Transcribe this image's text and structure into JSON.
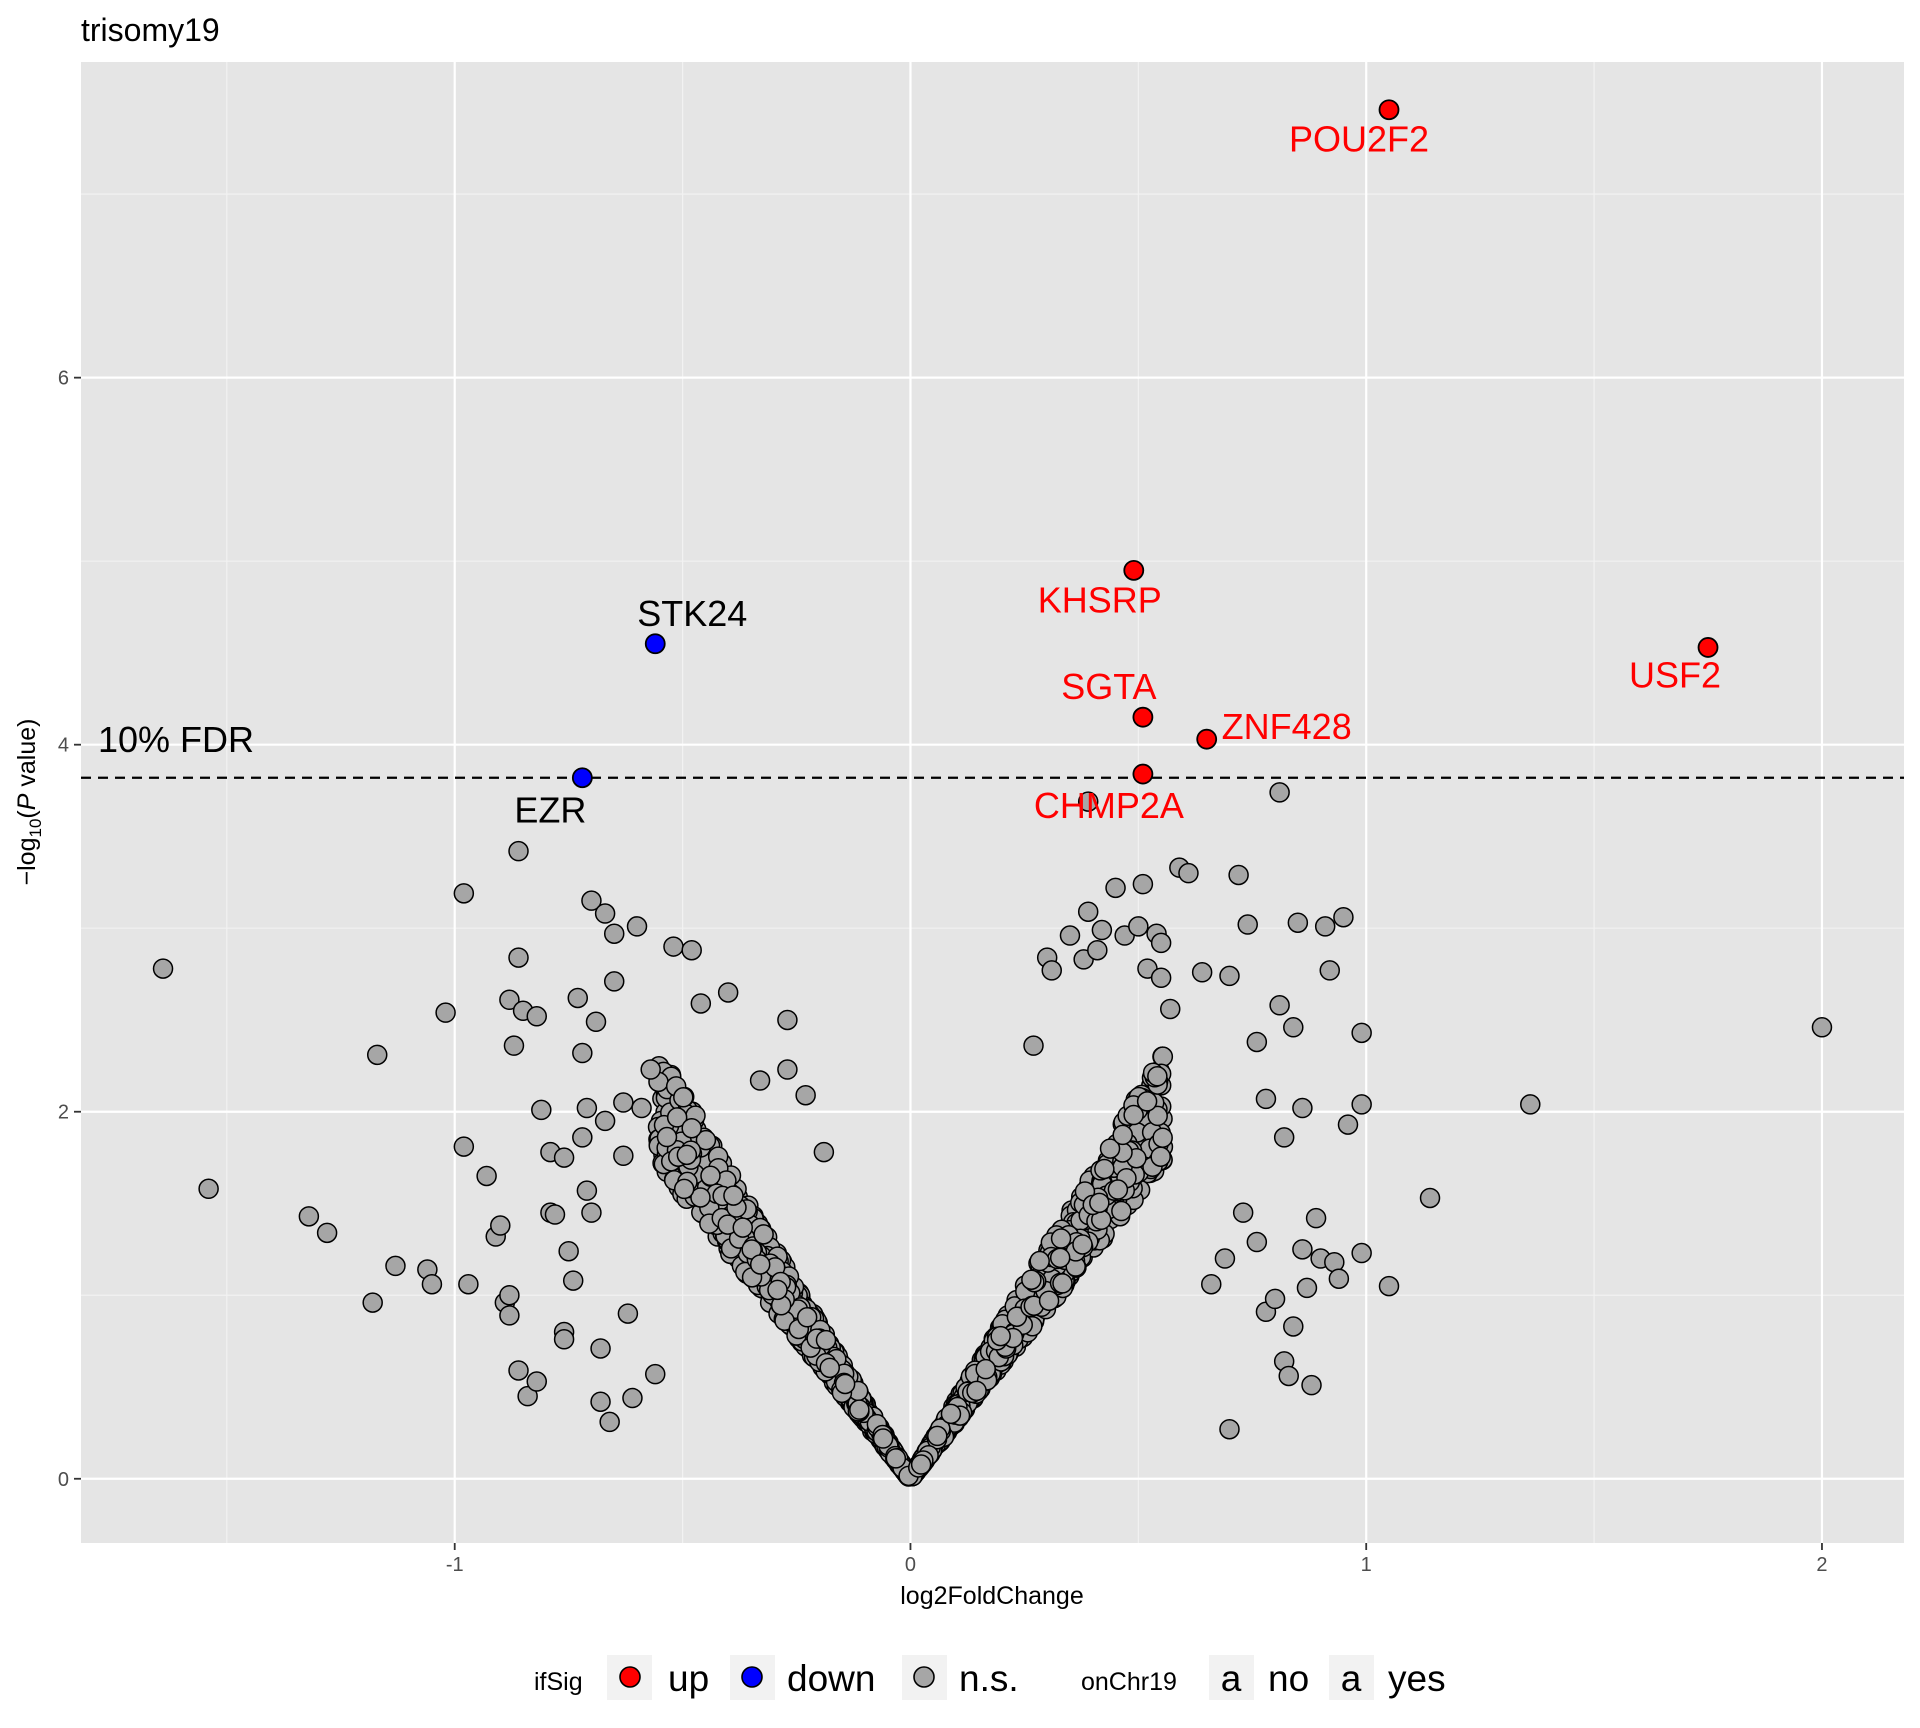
{
  "chart_data": {
    "type": "scatter",
    "title": "trisomy19",
    "xlabel": "log2FoldChange",
    "ylabel": "-log10(P value)",
    "xlim": [
      -1.82,
      2.18
    ],
    "ylim": [
      -0.35,
      7.72
    ],
    "x_ticks": [
      -1,
      0,
      1,
      2
    ],
    "x_tick_labels": [
      "-1",
      "0",
      "1",
      "2"
    ],
    "y_ticks": [
      0,
      2,
      4,
      6
    ],
    "y_tick_labels": [
      "0",
      "2",
      "4",
      "6"
    ],
    "grid": true,
    "threshold": {
      "y": 3.82,
      "label": "10% FDR"
    },
    "colors": {
      "up": "#ff0000",
      "down": "#0000ff",
      "ns": "#a6a6a6",
      "panel": "#e5e5e5",
      "grid": "#ffffff",
      "chr19": "#ff0000",
      "not_chr19": "#000000"
    },
    "significant_points": [
      {
        "gene": "POU2F2",
        "x": 1.05,
        "y": 7.46,
        "ifSig": "up",
        "onChr19": "yes"
      },
      {
        "gene": "KHSRP",
        "x": 0.49,
        "y": 4.95,
        "ifSig": "up",
        "onChr19": "yes"
      },
      {
        "gene": "USF2",
        "x": 1.75,
        "y": 4.53,
        "ifSig": "up",
        "onChr19": "yes"
      },
      {
        "gene": "SGTA",
        "x": 0.51,
        "y": 4.15,
        "ifSig": "up",
        "onChr19": "yes"
      },
      {
        "gene": "ZNF428",
        "x": 0.65,
        "y": 4.03,
        "ifSig": "up",
        "onChr19": "yes"
      },
      {
        "gene": "CHMP2A",
        "x": 0.51,
        "y": 3.84,
        "ifSig": "up",
        "onChr19": "yes"
      },
      {
        "gene": "STK24",
        "x": -0.56,
        "y": 4.55,
        "ifSig": "down",
        "onChr19": "no"
      },
      {
        "gene": "EZR",
        "x": -0.72,
        "y": 3.82,
        "ifSig": "down",
        "onChr19": "no"
      }
    ],
    "ns_outlier_points": [
      [
        -1.64,
        2.78
      ],
      [
        -1.54,
        1.58
      ],
      [
        -1.32,
        1.43
      ],
      [
        -1.28,
        1.34
      ],
      [
        -1.17,
        2.31
      ],
      [
        -1.18,
        0.96
      ],
      [
        -1.13,
        1.16
      ],
      [
        -1.06,
        1.14
      ],
      [
        -1.05,
        1.06
      ],
      [
        -1.02,
        2.54
      ],
      [
        -0.98,
        3.19
      ],
      [
        -0.98,
        1.81
      ],
      [
        -0.97,
        1.06
      ],
      [
        -0.93,
        1.65
      ],
      [
        -0.91,
        1.32
      ],
      [
        -0.9,
        1.38
      ],
      [
        -0.89,
        0.96
      ],
      [
        -0.88,
        1.0
      ],
      [
        -0.88,
        0.89
      ],
      [
        -0.88,
        2.61
      ],
      [
        -0.87,
        2.36
      ],
      [
        -0.86,
        3.42
      ],
      [
        -0.86,
        2.84
      ],
      [
        -0.85,
        2.55
      ],
      [
        -0.86,
        0.59
      ],
      [
        -0.84,
        0.45
      ],
      [
        -0.82,
        0.53
      ],
      [
        -0.82,
        2.52
      ],
      [
        -0.81,
        2.01
      ],
      [
        -0.79,
        1.78
      ],
      [
        -0.79,
        1.45
      ],
      [
        -0.78,
        1.44
      ],
      [
        -0.76,
        1.75
      ],
      [
        -0.76,
        0.8
      ],
      [
        -0.76,
        0.76
      ],
      [
        -0.75,
        1.24
      ],
      [
        -0.74,
        1.08
      ],
      [
        -0.73,
        2.62
      ],
      [
        -0.72,
        2.32
      ],
      [
        -0.72,
        1.86
      ],
      [
        -0.71,
        2.02
      ],
      [
        -0.71,
        1.57
      ],
      [
        -0.7,
        3.15
      ],
      [
        -0.7,
        1.45
      ],
      [
        -0.69,
        2.49
      ],
      [
        -0.68,
        0.42
      ],
      [
        -0.68,
        0.71
      ],
      [
        -0.67,
        3.08
      ],
      [
        -0.67,
        1.95
      ],
      [
        -0.66,
        0.31
      ],
      [
        -0.65,
        2.71
      ],
      [
        -0.65,
        2.97
      ],
      [
        -0.63,
        1.76
      ],
      [
        -0.63,
        2.05
      ],
      [
        -0.61,
        0.44
      ],
      [
        -0.6,
        3.01
      ],
      [
        -0.59,
        2.02
      ],
      [
        -0.57,
        2.23
      ],
      [
        -0.52,
        2.9
      ],
      [
        -0.48,
        2.88
      ],
      [
        -0.48,
        1.91
      ],
      [
        -0.46,
        2.59
      ],
      [
        -0.4,
        2.65
      ],
      [
        -0.33,
        2.17
      ],
      [
        -0.27,
        2.5
      ],
      [
        -0.27,
        2.23
      ],
      [
        -0.23,
        2.09
      ],
      [
        -0.19,
        1.78
      ],
      [
        -0.62,
        0.9
      ],
      [
        -0.56,
        0.57
      ],
      [
        0.27,
        2.36
      ],
      [
        0.3,
        2.84
      ],
      [
        0.31,
        2.77
      ],
      [
        0.35,
        2.96
      ],
      [
        0.38,
        2.83
      ],
      [
        0.39,
        3.09
      ],
      [
        0.41,
        2.88
      ],
      [
        0.42,
        2.99
      ],
      [
        0.45,
        3.22
      ],
      [
        0.47,
        2.96
      ],
      [
        0.5,
        3.01
      ],
      [
        0.51,
        3.24
      ],
      [
        0.52,
        2.78
      ],
      [
        0.54,
        2.97
      ],
      [
        0.55,
        2.73
      ],
      [
        0.55,
        2.92
      ],
      [
        0.57,
        2.56
      ],
      [
        0.59,
        3.33
      ],
      [
        0.61,
        3.3
      ],
      [
        0.64,
        2.76
      ],
      [
        0.7,
        2.74
      ],
      [
        0.72,
        3.29
      ],
      [
        0.74,
        3.02
      ],
      [
        0.76,
        2.38
      ],
      [
        0.78,
        2.07
      ],
      [
        0.81,
        2.58
      ],
      [
        0.82,
        1.86
      ],
      [
        0.84,
        2.46
      ],
      [
        0.85,
        3.03
      ],
      [
        0.86,
        2.02
      ],
      [
        0.89,
        1.42
      ],
      [
        0.91,
        3.01
      ],
      [
        0.92,
        2.77
      ],
      [
        0.95,
        3.06
      ],
      [
        0.96,
        1.93
      ],
      [
        0.99,
        2.43
      ],
      [
        0.99,
        2.04
      ],
      [
        0.99,
        1.23
      ],
      [
        1.05,
        1.05
      ],
      [
        1.14,
        1.53
      ],
      [
        1.36,
        2.04
      ],
      [
        2.0,
        2.46
      ],
      [
        0.81,
        3.74
      ],
      [
        0.39,
        3.69
      ],
      [
        0.88,
        0.51
      ],
      [
        0.82,
        0.64
      ],
      [
        0.78,
        0.91
      ],
      [
        0.76,
        1.29
      ],
      [
        0.7,
        0.27
      ],
      [
        0.9,
        1.2
      ],
      [
        0.93,
        1.18
      ],
      [
        0.86,
        1.25
      ],
      [
        0.94,
        1.09
      ],
      [
        0.87,
        1.04
      ],
      [
        0.83,
        0.56
      ],
      [
        0.84,
        0.83
      ],
      [
        0.73,
        1.45
      ],
      [
        0.8,
        0.98
      ],
      [
        0.69,
        1.2
      ],
      [
        0.66,
        1.06
      ]
    ]
  },
  "legend": {
    "sig_title": "ifSig",
    "sig_items": [
      {
        "label": "up",
        "color": "#ff0000"
      },
      {
        "label": "down",
        "color": "#0000ff"
      },
      {
        "label": "n.s.",
        "color": "#a6a6a6"
      }
    ],
    "chr_title": "onChr19",
    "chr_glyph": "a",
    "chr_items": [
      {
        "label": "no",
        "color": "#000000"
      },
      {
        "label": "yes",
        "color": "#ff0000"
      }
    ]
  }
}
